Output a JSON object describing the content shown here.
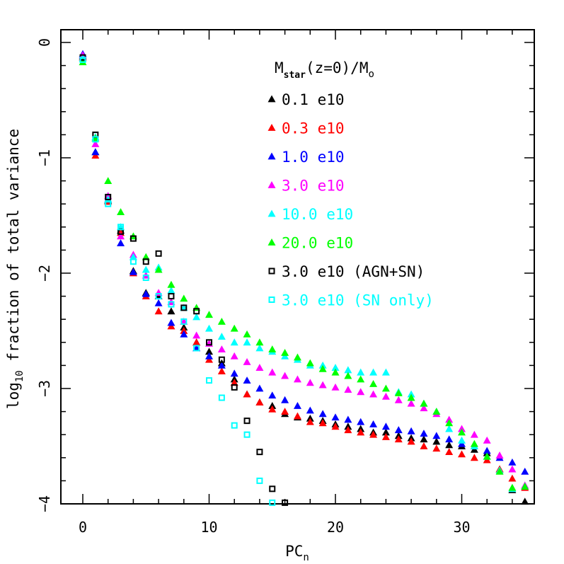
{
  "chart_data": {
    "type": "scatter",
    "xlabel": "PC",
    "xlabel_sub": "n",
    "ylabel_pre": "log",
    "ylabel_sub": "10",
    "ylabel_post": " fraction of total variance",
    "xlim": [
      -2,
      36
    ],
    "ylim": [
      -4,
      0.1
    ],
    "xticks": [
      0,
      10,
      20,
      30
    ],
    "yticks": [
      0,
      -1,
      -2,
      -3,
      -4
    ],
    "legend_title": {
      "main": "M",
      "sub1": "star",
      "mid": "(z=0)/M",
      "sub2": "o"
    },
    "legend_position": "top-right",
    "series": [
      {
        "name": "0.1 e10",
        "marker": "triangle",
        "color": "#000000",
        "x": [
          0,
          1,
          2,
          3,
          4,
          5,
          6,
          7,
          8,
          9,
          10,
          11,
          12,
          13,
          14,
          15,
          16,
          17,
          18,
          19,
          20,
          21,
          22,
          23,
          24,
          25,
          26,
          27,
          28,
          29,
          30,
          31,
          32,
          33,
          34,
          35
        ],
        "y": [
          -0.12,
          -0.95,
          -1.37,
          -1.63,
          -1.98,
          -2.17,
          -2.2,
          -2.33,
          -2.47,
          -2.6,
          -2.68,
          -2.78,
          -2.92,
          -3.05,
          -3.12,
          -3.15,
          -3.22,
          -3.25,
          -3.26,
          -3.28,
          -3.31,
          -3.33,
          -3.35,
          -3.38,
          -3.38,
          -3.41,
          -3.43,
          -3.44,
          -3.46,
          -3.49,
          -3.5,
          -3.53,
          -3.56,
          -3.7,
          -3.88,
          -3.98
        ]
      },
      {
        "name": "0.3 e10",
        "marker": "triangle",
        "color": "#ff0000",
        "x": [
          0,
          1,
          2,
          3,
          4,
          5,
          6,
          7,
          8,
          9,
          10,
          11,
          12,
          13,
          14,
          15,
          16,
          17,
          18,
          19,
          20,
          21,
          22,
          23,
          24,
          25,
          26,
          27,
          28,
          29,
          30,
          31,
          32,
          33,
          34,
          35
        ],
        "y": [
          -0.13,
          -0.98,
          -1.38,
          -1.65,
          -2.0,
          -2.2,
          -2.33,
          -2.46,
          -2.5,
          -2.6,
          -2.75,
          -2.85,
          -2.95,
          -3.05,
          -3.12,
          -3.18,
          -3.2,
          -3.24,
          -3.29,
          -3.3,
          -3.33,
          -3.36,
          -3.38,
          -3.4,
          -3.42,
          -3.44,
          -3.46,
          -3.5,
          -3.52,
          -3.55,
          -3.57,
          -3.6,
          -3.62,
          -3.7,
          -3.78,
          -3.86
        ]
      },
      {
        "name": "1.0 e10",
        "marker": "triangle",
        "color": "#0000ff",
        "x": [
          0,
          1,
          2,
          3,
          4,
          5,
          6,
          7,
          8,
          9,
          10,
          11,
          12,
          13,
          14,
          15,
          16,
          17,
          18,
          19,
          20,
          21,
          22,
          23,
          24,
          25,
          26,
          27,
          28,
          29,
          30,
          31,
          32,
          33,
          34,
          35
        ],
        "y": [
          -0.1,
          -0.95,
          -1.36,
          -1.74,
          -1.99,
          -2.18,
          -2.26,
          -2.43,
          -2.53,
          -2.65,
          -2.72,
          -2.8,
          -2.87,
          -2.93,
          -3.0,
          -3.06,
          -3.1,
          -3.15,
          -3.19,
          -3.22,
          -3.25,
          -3.27,
          -3.29,
          -3.31,
          -3.33,
          -3.36,
          -3.37,
          -3.39,
          -3.41,
          -3.44,
          -3.48,
          -3.5,
          -3.54,
          -3.6,
          -3.64,
          -3.72
        ]
      },
      {
        "name": "3.0 e10",
        "marker": "triangle",
        "color": "#ff00ff",
        "x": [
          0,
          1,
          2,
          3,
          4,
          5,
          6,
          7,
          8,
          9,
          10,
          11,
          12,
          13,
          14,
          15,
          16,
          17,
          18,
          19,
          20,
          21,
          22,
          23,
          24,
          25,
          26,
          27,
          28,
          29,
          30,
          31,
          32,
          33,
          34,
          35
        ],
        "y": [
          -0.11,
          -0.88,
          -1.33,
          -1.68,
          -1.84,
          -2.02,
          -2.17,
          -2.25,
          -2.42,
          -2.54,
          -2.61,
          -2.66,
          -2.72,
          -2.77,
          -2.82,
          -2.86,
          -2.89,
          -2.92,
          -2.95,
          -2.97,
          -2.99,
          -3.01,
          -3.03,
          -3.05,
          -3.07,
          -3.1,
          -3.13,
          -3.17,
          -3.22,
          -3.27,
          -3.35,
          -3.4,
          -3.45,
          -3.58,
          -3.7,
          -3.84
        ]
      },
      {
        "name": "10.0 e10",
        "marker": "triangle",
        "color": "#00ffff",
        "x": [
          0,
          1,
          2,
          3,
          4,
          5,
          6,
          7,
          8,
          9,
          10,
          11,
          12,
          13,
          14,
          15,
          16,
          17,
          18,
          19,
          20,
          21,
          22,
          23,
          24,
          25,
          26,
          27,
          28,
          29,
          30,
          31,
          32,
          33,
          34,
          35
        ],
        "y": [
          -0.14,
          -0.82,
          -1.36,
          -1.6,
          -1.86,
          -1.97,
          -1.95,
          -2.15,
          -2.3,
          -2.38,
          -2.48,
          -2.55,
          -2.6,
          -2.6,
          -2.65,
          -2.68,
          -2.72,
          -2.75,
          -2.8,
          -2.8,
          -2.82,
          -2.84,
          -2.86,
          -2.86,
          -2.86,
          -3.03,
          -3.05,
          -3.13,
          -3.2,
          -3.35,
          -3.45,
          -3.5,
          -3.59,
          -3.71,
          -3.87,
          -3.85
        ]
      },
      {
        "name": "20.0 e10",
        "marker": "triangle",
        "color": "#00ff00",
        "x": [
          0,
          1,
          2,
          3,
          4,
          5,
          6,
          7,
          8,
          9,
          10,
          11,
          12,
          13,
          14,
          15,
          16,
          17,
          18,
          19,
          20,
          21,
          22,
          23,
          24,
          25,
          26,
          27,
          28,
          29,
          30,
          31,
          32,
          33,
          34,
          35
        ],
        "y": [
          -0.17,
          -0.83,
          -1.2,
          -1.47,
          -1.68,
          -1.86,
          -1.97,
          -2.1,
          -2.22,
          -2.3,
          -2.36,
          -2.42,
          -2.48,
          -2.53,
          -2.6,
          -2.66,
          -2.69,
          -2.73,
          -2.78,
          -2.83,
          -2.86,
          -2.89,
          -2.92,
          -2.96,
          -3.0,
          -3.04,
          -3.08,
          -3.13,
          -3.2,
          -3.3,
          -3.38,
          -3.48,
          -3.59,
          -3.72,
          -3.86,
          -3.85
        ]
      },
      {
        "name": "3.0 e10 (AGN+SN)",
        "marker": "square",
        "color": "#000000",
        "x": [
          0,
          1,
          2,
          3,
          4,
          5,
          6,
          7,
          8,
          9,
          10,
          11,
          12,
          13,
          14,
          15,
          16
        ],
        "y": [
          -0.13,
          -0.8,
          -1.34,
          -1.64,
          -1.7,
          -1.9,
          -1.83,
          -2.2,
          -2.3,
          -2.33,
          -2.6,
          -2.75,
          -2.99,
          -3.28,
          -3.55,
          -3.87,
          -3.99
        ]
      },
      {
        "name": "3.0 e10 (SN only)",
        "marker": "square",
        "color": "#00ffff",
        "x": [
          0,
          1,
          2,
          3,
          4,
          5,
          6,
          7,
          8,
          9,
          10,
          11,
          12,
          13,
          14,
          15
        ],
        "y": [
          -0.15,
          -0.84,
          -1.4,
          -1.6,
          -1.9,
          -2.04,
          -2.2,
          -2.27,
          -2.42,
          -2.65,
          -2.93,
          -3.08,
          -3.32,
          -3.4,
          -3.8,
          -3.99
        ]
      }
    ]
  }
}
